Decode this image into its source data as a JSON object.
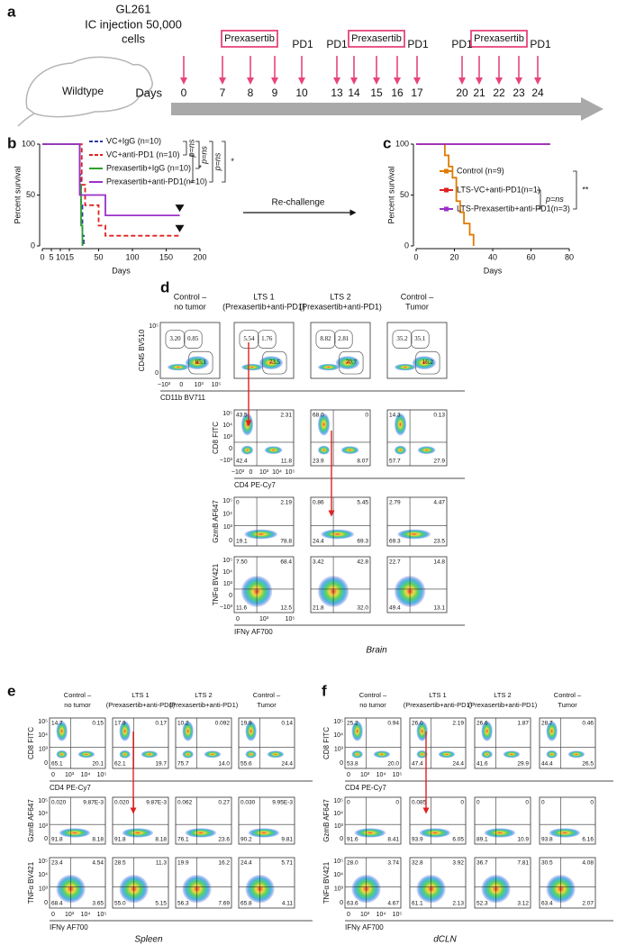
{
  "panel_a": {
    "letter": "a",
    "model": "GL261",
    "injection": "IC injection 50,000",
    "cells": "cells",
    "mouse": "Wildtype",
    "days_label": "Days",
    "days": [
      "0",
      "7",
      "8",
      "9",
      "10",
      "13",
      "14",
      "15",
      "16",
      "17",
      "20",
      "21",
      "22",
      "23",
      "24"
    ],
    "prexasertib_boxes": [
      "Prexasertib",
      "Prexasertib",
      "Prexasertib"
    ],
    "pd1_labels": [
      "PD1",
      "PD1",
      "PD1",
      "PD1",
      "PD1"
    ]
  },
  "chart_data": [
    {
      "type": "survival",
      "letter": "b",
      "ylabel": "Percent survival",
      "xlabel": "Days",
      "xlim": [
        0,
        200
      ],
      "xticks": [
        0,
        5,
        10,
        15,
        50,
        100,
        150,
        200
      ],
      "ylim": [
        0,
        100
      ],
      "yticks": [
        0,
        50,
        100
      ],
      "series": [
        {
          "name": "VC+IgG (n=10)",
          "color": "#2b3aa8",
          "dashed": true,
          "x": [
            0,
            20,
            22,
            24,
            26,
            28
          ],
          "values": [
            100,
            100,
            70,
            40,
            10,
            0
          ]
        },
        {
          "name": "VC+anti-PD1 (n=10)",
          "color": "#e02020",
          "dashed": true,
          "x": [
            0,
            20,
            25,
            30,
            50,
            60,
            170
          ],
          "values": [
            100,
            100,
            60,
            40,
            20,
            10,
            10
          ]
        },
        {
          "name": "Prexasertib+IgG (n=10)",
          "color": "#2ca02c",
          "dashed": false,
          "x": [
            0,
            20,
            22,
            24,
            26
          ],
          "values": [
            100,
            100,
            60,
            20,
            0
          ]
        },
        {
          "name": "Prexasertib+anti-PD1(n=10)",
          "color": "#9b30c8",
          "dashed": false,
          "x": [
            0,
            20,
            22,
            60,
            170
          ],
          "values": [
            100,
            100,
            50,
            30,
            30
          ]
        }
      ],
      "annotations": [
        "p=ns",
        "p=ns",
        "p=ns",
        "*",
        "*"
      ],
      "rechallenge": "Re-challenge"
    },
    {
      "type": "survival",
      "letter": "c",
      "ylabel": "Percent survival",
      "xlabel": "Days",
      "xlim": [
        0,
        80
      ],
      "xticks": [
        0,
        20,
        40,
        60,
        80
      ],
      "ylim": [
        0,
        100
      ],
      "yticks": [
        0,
        50,
        100
      ],
      "series": [
        {
          "name": "Control (n=9)",
          "color": "#e07b00",
          "dashed": false,
          "x": [
            0,
            12,
            15,
            17,
            19,
            21,
            23,
            25,
            28,
            30
          ],
          "values": [
            100,
            100,
            89,
            78,
            67,
            44,
            33,
            22,
            11,
            0
          ]
        },
        {
          "name": "LTS-VC+anti-PD1(n=1)",
          "color": "#e02020",
          "dashed": false,
          "x": [
            0,
            70
          ],
          "values": [
            100,
            100
          ]
        },
        {
          "name": "LTS-Prexasertib+anti-PD1(n=3)",
          "color": "#9b30c8",
          "dashed": false,
          "x": [
            0,
            70
          ],
          "values": [
            100,
            100
          ]
        }
      ],
      "annotations": [
        "p=ns",
        "**"
      ]
    }
  ],
  "panel_d": {
    "letter": "d",
    "tissue": "Brain",
    "headers": [
      [
        "Control –",
        "no tumor"
      ],
      [
        "LTS 1",
        "(Prexasertib+anti-PD1)"
      ],
      [
        "LTS 2",
        "(Prexasertib+anti-PD1)"
      ],
      [
        "Control –",
        "Tumor"
      ]
    ],
    "rows": [
      {
        "ylabel": "CD45 BV510",
        "yticks": [
          "10⁵",
          "0"
        ],
        "xticks": [
          "−10³",
          "0",
          "10³",
          "10⁵"
        ],
        "xlabel": "CD11b BV711",
        "plots": [
          [
            "3.20",
            "0.85",
            "85.1"
          ],
          [
            "5.54",
            "1.76",
            "73.5"
          ],
          [
            "8.82",
            "2.81",
            "70.7"
          ],
          [
            "35.2",
            "35.1",
            "16.2"
          ]
        ]
      },
      {
        "ylabel": "CD8 FITC",
        "yticks": [
          "10⁵",
          "10⁴",
          "10³",
          "0",
          "−10³"
        ],
        "xticks": [
          "−10³",
          "0",
          "10³",
          "10⁴",
          "10⁵"
        ],
        "xlabel": "CD4 PE-Cy7",
        "plots": [
          null,
          [
            "43.5",
            "2.31",
            "42.4",
            "11.8"
          ],
          [
            "68.0",
            "0",
            "23.9",
            "8.07"
          ],
          [
            "14.3",
            "0.13",
            "57.7",
            "27.9"
          ]
        ]
      },
      {
        "ylabel": "GzmB AF647",
        "yticks": [
          "10⁵",
          "10⁴",
          "10³",
          "0"
        ],
        "plots": [
          null,
          [
            "0",
            "2.19",
            "19.1",
            "78.8"
          ],
          [
            "0.86",
            "5.45",
            "24.4",
            "69.3"
          ],
          [
            "2.79",
            "4.47",
            "69.3",
            "23.5"
          ]
        ]
      },
      {
        "ylabel": "TNFα BV421",
        "yticks": [
          "10⁵",
          "10⁴",
          "10³",
          "0",
          "−10³"
        ],
        "xticks": [
          "0",
          "10³",
          "10⁵"
        ],
        "xlabel": "IFNγ AF700",
        "plots": [
          null,
          [
            "7.50",
            "68.4",
            "11.6",
            "12.5"
          ],
          [
            "3.42",
            "42.8",
            "21.8",
            "32.0"
          ],
          [
            "22.7",
            "14.8",
            "49.4",
            "13.1"
          ]
        ]
      }
    ]
  },
  "panel_e": {
    "letter": "e",
    "tissue": "Spleen",
    "headers": [
      [
        "Control –",
        "no tumor"
      ],
      [
        "LTS 1",
        "(Prexasertib+anti-PD1)"
      ],
      [
        "LTS 2",
        "(Prexasertib+anti-PD1)"
      ],
      [
        "Control –",
        "Tumor"
      ]
    ],
    "rows": [
      {
        "ylabel": "CD8 FITC",
        "yticks": [
          "10⁵",
          "10⁴",
          "10³",
          "0"
        ],
        "xticks": [
          "0",
          "10³",
          "10⁴",
          "10⁵"
        ],
        "xlabel": "CD4 PE-Cy7",
        "plots": [
          [
            "14.7",
            "0.15",
            "65.1",
            "20.1"
          ],
          [
            "17.9",
            "0.17",
            "62.1",
            "19.7"
          ],
          [
            "10.2",
            "0.092",
            "75.7",
            "14.0"
          ],
          [
            "19.9",
            "0.14",
            "55.6",
            "24.4"
          ]
        ]
      },
      {
        "ylabel": "GzmB AF647",
        "yticks": [
          "10⁵",
          "10⁴",
          "10³",
          "0"
        ],
        "plots": [
          [
            "0.020",
            "9.87E-3",
            "91.8",
            "8.18"
          ],
          [
            "0.020",
            "9.87E-3",
            "91.8",
            "8.18"
          ],
          [
            "0.062",
            "0.27",
            "76.1",
            "23.6"
          ],
          [
            "0.030",
            "9.95E-3",
            "90.2",
            "9.81"
          ]
        ]
      },
      {
        "ylabel": "TNFα BV421",
        "yticks": [
          "10⁵",
          "10⁴",
          "10³",
          "0"
        ],
        "xticks": [
          "0",
          "10³",
          "10⁴",
          "10⁵"
        ],
        "xlabel": "IFNγ AF700",
        "plots": [
          [
            "23.4",
            "4.54",
            "68.4",
            "3.65"
          ],
          [
            "28.5",
            "11.3",
            "55.0",
            "5.15"
          ],
          [
            "19.9",
            "16.2",
            "56.3",
            "7.69"
          ],
          [
            "24.4",
            "5.71",
            "65.8",
            "4.11"
          ]
        ]
      }
    ]
  },
  "panel_f": {
    "letter": "f",
    "tissue": "dCLN",
    "headers": [
      [
        "Control –",
        "no tumor"
      ],
      [
        "LTS 1",
        "(Prexasertib+anti-PD1)"
      ],
      [
        "LTS 2",
        "(Prexasertib+anti-PD1)"
      ],
      [
        "Control –",
        "Tumor"
      ]
    ],
    "rows": [
      {
        "ylabel": "CD8 FITC",
        "yticks": [
          "10⁵",
          "10⁴",
          "10³",
          "0"
        ],
        "xticks": [
          "0",
          "10³",
          "10⁴",
          "10⁵"
        ],
        "xlabel": "CD4 PE-Cy7",
        "plots": [
          [
            "25.2",
            "0.94",
            "53.8",
            "20.0"
          ],
          [
            "26.0",
            "2.19",
            "47.4",
            "24.4"
          ],
          [
            "26.6",
            "1.87",
            "41.6",
            "29.9"
          ],
          [
            "28.7",
            "0.46",
            "44.4",
            "26.5"
          ]
        ]
      },
      {
        "ylabel": "GzmB AF647",
        "yticks": [
          "10⁵",
          "10⁴",
          "10³",
          "0"
        ],
        "plots": [
          [
            "0",
            "0",
            "91.6",
            "8.41"
          ],
          [
            "0.085",
            "0",
            "93.9",
            "6.05"
          ],
          [
            "0",
            "0",
            "89.1",
            "10.9"
          ],
          [
            "0",
            "0",
            "93.8",
            "6.16"
          ]
        ]
      },
      {
        "ylabel": "TNFα BV421",
        "yticks": [
          "10⁵",
          "10⁴",
          "10³",
          "0"
        ],
        "xticks": [
          "0",
          "10³",
          "10⁴",
          "10⁵"
        ],
        "xlabel": "IFNγ AF700",
        "plots": [
          [
            "28.0",
            "3.74",
            "63.6",
            "4.67"
          ],
          [
            "32.8",
            "3.92",
            "61.1",
            "2.13"
          ],
          [
            "36.7",
            "7.81",
            "52.3",
            "3.12"
          ],
          [
            "30.5",
            "4.08",
            "63.4",
            "2.07"
          ]
        ]
      }
    ]
  }
}
